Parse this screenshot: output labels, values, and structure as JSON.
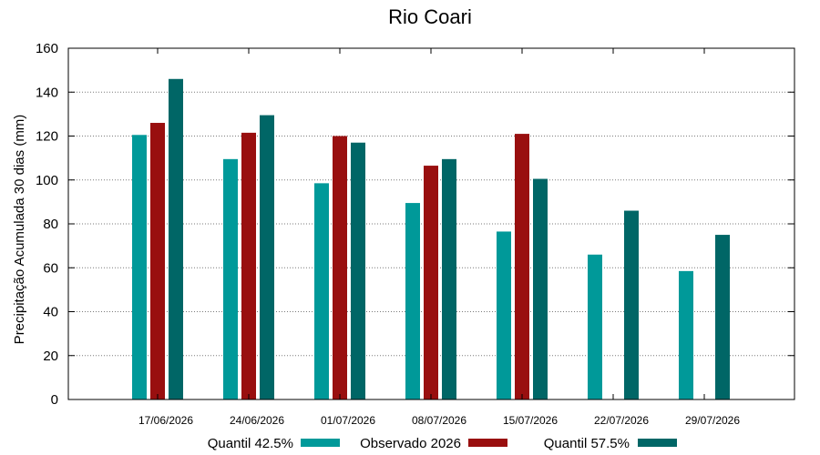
{
  "chart_data": {
    "type": "bar",
    "title": "Rio Coari",
    "xlabel": "",
    "ylabel": "Precipitação Acumulada 30 dias (mm)",
    "ylim": [
      0,
      160
    ],
    "yticks": [
      0,
      20,
      40,
      60,
      80,
      100,
      120,
      140,
      160
    ],
    "grid": true,
    "legend_position": "bottom",
    "categories": [
      "17/06/2026",
      "24/06/2026",
      "01/07/2026",
      "08/07/2026",
      "15/07/2026",
      "22/07/2026",
      "29/07/2026"
    ],
    "series": [
      {
        "name": "Quantil 42.5%",
        "color": "#009999",
        "values": [
          120.5,
          109.5,
          98.5,
          89.5,
          76.5,
          66,
          58.5
        ]
      },
      {
        "name": "Observado 2026",
        "color": "#990f0f",
        "values": [
          126,
          121.5,
          120,
          106.5,
          121,
          null,
          null
        ]
      },
      {
        "name": "Quantil 57.5%",
        "color": "#006666",
        "values": [
          146,
          129.5,
          117,
          109.5,
          100.5,
          86,
          75
        ]
      }
    ]
  }
}
